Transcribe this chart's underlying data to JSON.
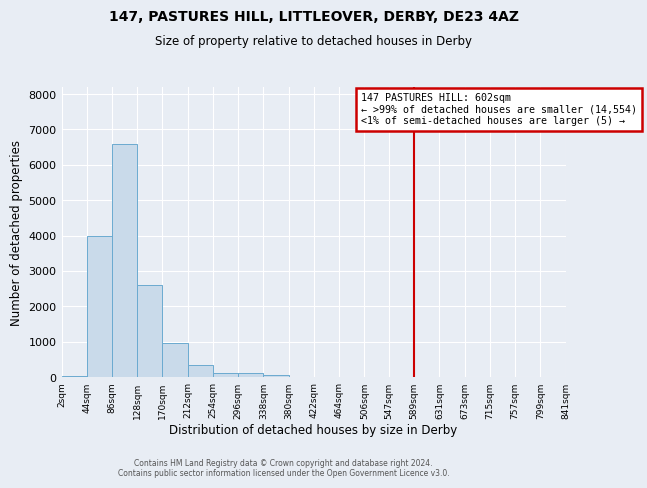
{
  "title": "147, PASTURES HILL, LITTLEOVER, DERBY, DE23 4AZ",
  "subtitle": "Size of property relative to detached houses in Derby",
  "xlabel": "Distribution of detached houses by size in Derby",
  "ylabel": "Number of detached properties",
  "bar_color": "#c9daea",
  "bar_edge_color": "#6baad0",
  "bin_edges": [
    2,
    44,
    86,
    128,
    170,
    212,
    254,
    296,
    338,
    380,
    422,
    464,
    506,
    547,
    589,
    631,
    673,
    715,
    757,
    799,
    841
  ],
  "bar_heights": [
    25,
    4000,
    6600,
    2600,
    950,
    330,
    120,
    100,
    50,
    5,
    2,
    1,
    1,
    0,
    0,
    0,
    0,
    0,
    0,
    0
  ],
  "vline_x": 589,
  "vline_color": "#cc0000",
  "annotation_title": "147 PASTURES HILL: 602sqm",
  "annotation_line1": "← >99% of detached houses are smaller (14,554)",
  "annotation_line2": "<1% of semi-detached houses are larger (5) →",
  "annotation_box_color": "#ffffff",
  "annotation_border_color": "#cc0000",
  "ylim": [
    0,
    8200
  ],
  "yticks": [
    0,
    1000,
    2000,
    3000,
    4000,
    5000,
    6000,
    7000,
    8000
  ],
  "xtick_labels": [
    "2sqm",
    "44sqm",
    "86sqm",
    "128sqm",
    "170sqm",
    "212sqm",
    "254sqm",
    "296sqm",
    "338sqm",
    "380sqm",
    "422sqm",
    "464sqm",
    "506sqm",
    "547sqm",
    "589sqm",
    "631sqm",
    "673sqm",
    "715sqm",
    "757sqm",
    "799sqm",
    "841sqm"
  ],
  "background_color": "#e8edf4",
  "grid_color": "#ffffff",
  "footer1": "Contains HM Land Registry data © Crown copyright and database right 2024.",
  "footer2": "Contains public sector information licensed under the Open Government Licence v3.0."
}
